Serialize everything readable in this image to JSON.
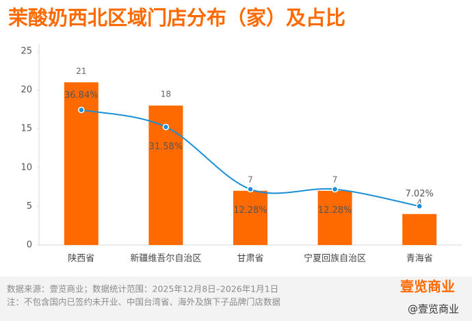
{
  "chart_data": {
    "type": "bar",
    "title": "茉酸奶西北区域门店分布（家）及占比",
    "categories": [
      "陕西省",
      "新疆维吾尔自治区",
      "甘肃省",
      "宁夏回族自治区",
      "青海省"
    ],
    "series": [
      {
        "type": "bar",
        "color": "#ff6a00",
        "values": [
          21,
          18,
          7,
          7,
          4
        ]
      },
      {
        "type": "line",
        "axis": "y2",
        "color": "#1a8fd6",
        "values": [
          36.84,
          31.58,
          12.28,
          12.28,
          7.02
        ],
        "value_labels": [
          "36.84%",
          "31.58%",
          "12.28%",
          "12.28%",
          "7.02%"
        ]
      }
    ],
    "ylim": [
      0,
      25
    ],
    "yticks": [
      0,
      5,
      10,
      15,
      20,
      25
    ],
    "y2lim": [
      -5,
      55
    ],
    "grid": false
  },
  "footer": {
    "source": "数据来源：壹览商业；数据统计范围：2025年12月8日–2026年1月1日",
    "note": "注：不包含国内已签约未开业、中国台湾省、海外及旗下子品牌门店数据",
    "logo": "壹览商业",
    "handle": "@壹览商业"
  }
}
